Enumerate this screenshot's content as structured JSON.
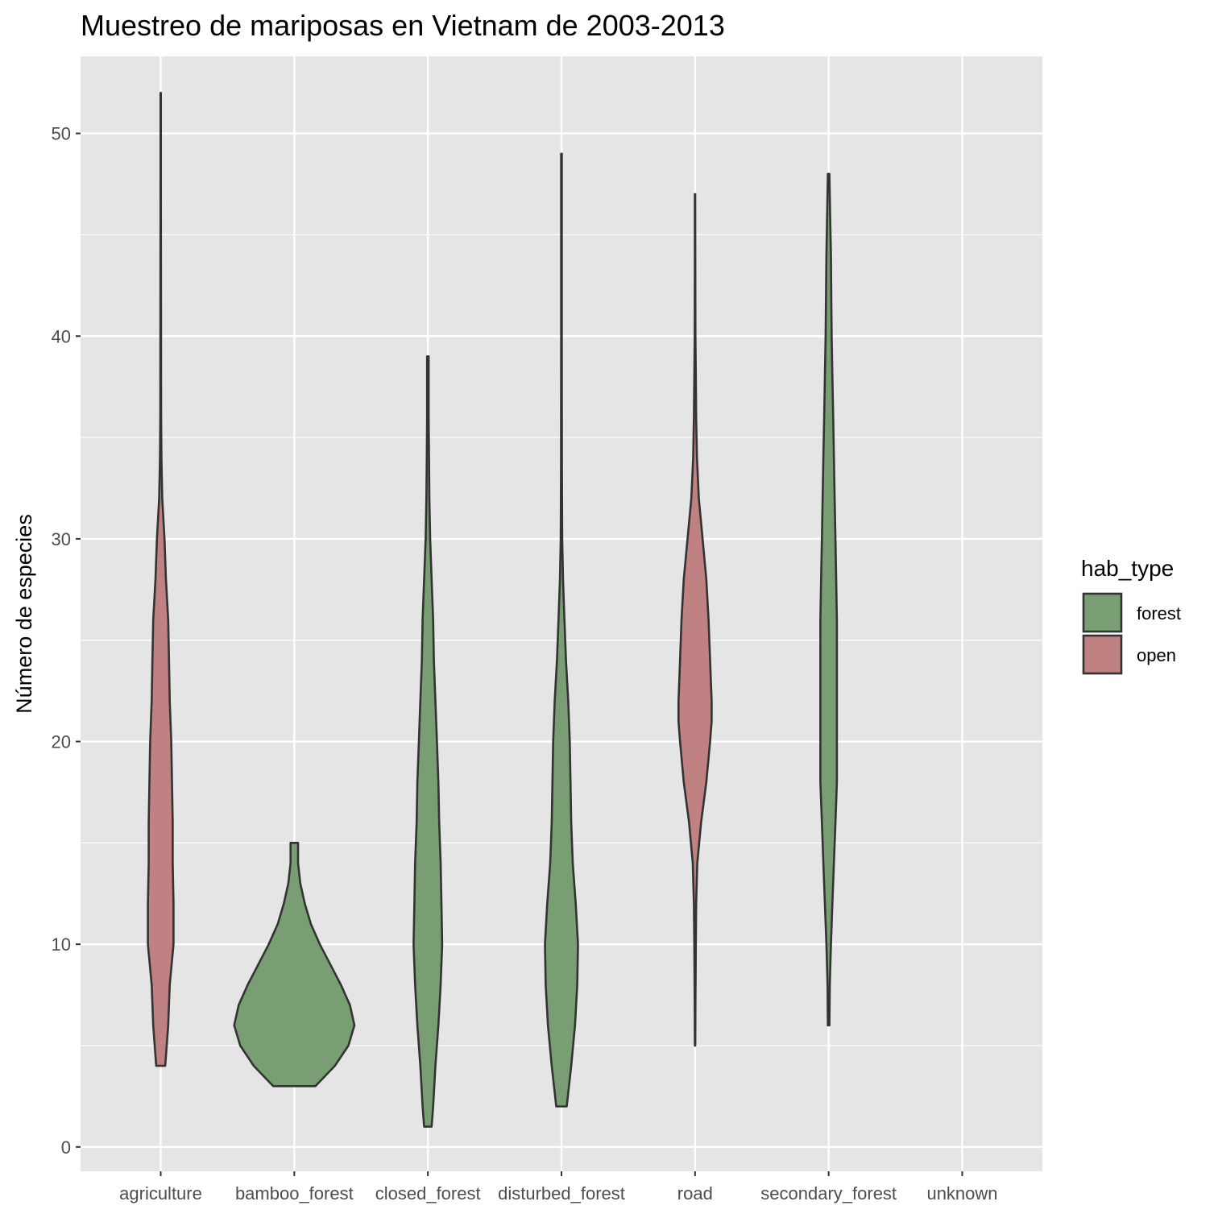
{
  "chart_data": {
    "type": "violin",
    "title": "Muestreo de mariposas en Vietnam de 2003-2013",
    "xlabel": "",
    "ylabel": "Número de especies",
    "ylim": [
      -1.2,
      53.8
    ],
    "y_ticks": [
      0,
      10,
      20,
      30,
      40,
      50
    ],
    "categories": [
      "agriculture",
      "bamboo_forest",
      "closed_forest",
      "disturbed_forest",
      "road",
      "secondary_forest",
      "unknown"
    ],
    "grid": true,
    "legend": {
      "title": "hab_type",
      "position": "right",
      "entries": [
        {
          "name": "forest",
          "color": "#7a9e73"
        },
        {
          "name": "open",
          "color": "#bf8182"
        }
      ]
    },
    "series": [
      {
        "category": "agriculture",
        "group": "open",
        "min": 4,
        "max": 52,
        "profile": [
          [
            4,
            0.06
          ],
          [
            6,
            0.1
          ],
          [
            8,
            0.12
          ],
          [
            10,
            0.17
          ],
          [
            12,
            0.17
          ],
          [
            14,
            0.16
          ],
          [
            16,
            0.16
          ],
          [
            18,
            0.15
          ],
          [
            20,
            0.14
          ],
          [
            22,
            0.12
          ],
          [
            24,
            0.11
          ],
          [
            26,
            0.1
          ],
          [
            28,
            0.07
          ],
          [
            30,
            0.05
          ],
          [
            32,
            0.02
          ],
          [
            34,
            0.01
          ],
          [
            36,
            0.005
          ],
          [
            40,
            0.004
          ],
          [
            44,
            0.003
          ],
          [
            48,
            0.002
          ],
          [
            52,
            0.002
          ]
        ]
      },
      {
        "category": "bamboo_forest",
        "group": "forest",
        "min": 3,
        "max": 15,
        "profile": [
          [
            3,
            0.28
          ],
          [
            4,
            0.54
          ],
          [
            5,
            0.72
          ],
          [
            6,
            0.8
          ],
          [
            7,
            0.74
          ],
          [
            8,
            0.62
          ],
          [
            9,
            0.48
          ],
          [
            10,
            0.34
          ],
          [
            11,
            0.22
          ],
          [
            12,
            0.14
          ],
          [
            13,
            0.08
          ],
          [
            14,
            0.05
          ],
          [
            15,
            0.05
          ]
        ]
      },
      {
        "category": "closed_forest",
        "group": "forest",
        "min": 1,
        "max": 39,
        "profile": [
          [
            1,
            0.05
          ],
          [
            2,
            0.07
          ],
          [
            4,
            0.1
          ],
          [
            6,
            0.14
          ],
          [
            8,
            0.17
          ],
          [
            10,
            0.19
          ],
          [
            12,
            0.18
          ],
          [
            14,
            0.17
          ],
          [
            16,
            0.15
          ],
          [
            18,
            0.14
          ],
          [
            20,
            0.12
          ],
          [
            22,
            0.1
          ],
          [
            24,
            0.08
          ],
          [
            26,
            0.07
          ],
          [
            28,
            0.05
          ],
          [
            30,
            0.03
          ],
          [
            32,
            0.02
          ],
          [
            34,
            0.015
          ],
          [
            36,
            0.01
          ],
          [
            39,
            0.01
          ]
        ]
      },
      {
        "category": "disturbed_forest",
        "group": "forest",
        "min": 2,
        "max": 49,
        "profile": [
          [
            2,
            0.07
          ],
          [
            4,
            0.13
          ],
          [
            6,
            0.18
          ],
          [
            8,
            0.21
          ],
          [
            10,
            0.22
          ],
          [
            12,
            0.19
          ],
          [
            14,
            0.15
          ],
          [
            16,
            0.13
          ],
          [
            18,
            0.12
          ],
          [
            20,
            0.11
          ],
          [
            22,
            0.09
          ],
          [
            24,
            0.06
          ],
          [
            26,
            0.04
          ],
          [
            28,
            0.02
          ],
          [
            30,
            0.01
          ],
          [
            34,
            0.005
          ],
          [
            40,
            0.004
          ],
          [
            44,
            0.004
          ],
          [
            49,
            0.004
          ]
        ]
      },
      {
        "category": "road",
        "group": "open",
        "min": 5,
        "max": 47,
        "profile": [
          [
            5,
            0.003
          ],
          [
            7,
            0.005
          ],
          [
            10,
            0.01
          ],
          [
            12,
            0.015
          ],
          [
            14,
            0.03
          ],
          [
            16,
            0.08
          ],
          [
            18,
            0.15
          ],
          [
            20,
            0.2
          ],
          [
            21,
            0.22
          ],
          [
            22,
            0.22
          ],
          [
            24,
            0.2
          ],
          [
            26,
            0.18
          ],
          [
            28,
            0.15
          ],
          [
            30,
            0.1
          ],
          [
            32,
            0.05
          ],
          [
            34,
            0.025
          ],
          [
            36,
            0.015
          ],
          [
            38,
            0.01
          ],
          [
            40,
            0.005
          ],
          [
            44,
            0.003
          ],
          [
            47,
            0.002
          ]
        ]
      },
      {
        "category": "secondary_forest",
        "group": "forest",
        "min": 6,
        "max": 48,
        "profile": [
          [
            6,
            0.01
          ],
          [
            8,
            0.015
          ],
          [
            10,
            0.03
          ],
          [
            12,
            0.05
          ],
          [
            14,
            0.07
          ],
          [
            16,
            0.09
          ],
          [
            18,
            0.11
          ],
          [
            20,
            0.11
          ],
          [
            22,
            0.11
          ],
          [
            24,
            0.11
          ],
          [
            26,
            0.11
          ],
          [
            28,
            0.1
          ],
          [
            30,
            0.09
          ],
          [
            32,
            0.08
          ],
          [
            34,
            0.07
          ],
          [
            36,
            0.06
          ],
          [
            38,
            0.05
          ],
          [
            40,
            0.04
          ],
          [
            42,
            0.035
          ],
          [
            44,
            0.03
          ],
          [
            46,
            0.02
          ],
          [
            48,
            0.01
          ]
        ]
      }
    ]
  }
}
